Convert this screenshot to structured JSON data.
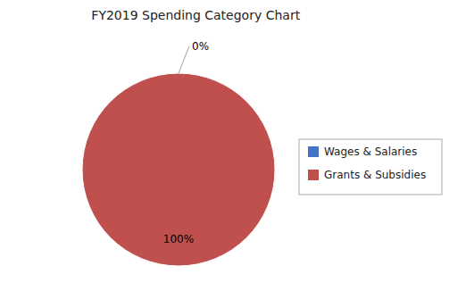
{
  "chart_data": {
    "type": "pie",
    "title": "FY2019 Spending  Category Chart",
    "categories": [
      "Wages & Salaries",
      "Grants & Subsidies"
    ],
    "values": [
      0,
      100
    ],
    "value_labels": [
      "0%",
      "100%"
    ],
    "data_labels": true,
    "colors": [
      "#4472C4",
      "#C0504D"
    ],
    "legend": "right"
  }
}
